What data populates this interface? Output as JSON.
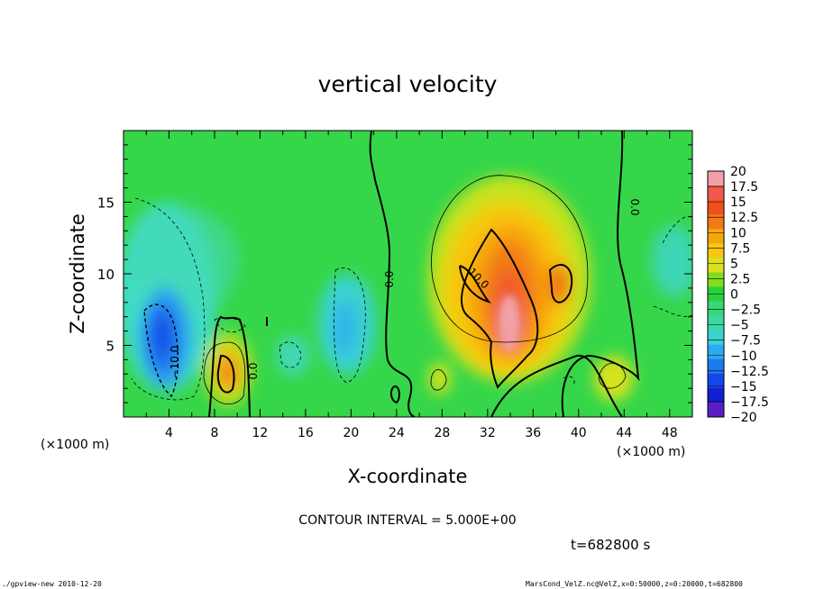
{
  "chart_data": {
    "type": "heatmap",
    "title": "vertical velocity",
    "xlabel": "X-coordinate",
    "ylabel": "Z-coordinate",
    "x_unit_left": "(×1000 m)",
    "x_unit_right": "(×1000 m)",
    "xlim": [
      0,
      50
    ],
    "ylim": [
      0,
      20
    ],
    "x_ticks": [
      "4",
      "8",
      "12",
      "16",
      "20",
      "24",
      "28",
      "32",
      "36",
      "40",
      "44",
      "48"
    ],
    "x_tick_values": [
      4,
      8,
      12,
      16,
      20,
      24,
      28,
      32,
      36,
      40,
      44,
      48
    ],
    "y_ticks": [
      "5",
      "10",
      "15"
    ],
    "y_tick_values": [
      5,
      10,
      15
    ],
    "colorbar_labels": [
      "20",
      "17.5",
      "15",
      "12.5",
      "10",
      "7.5",
      "5",
      "2.5",
      "0",
      "−2.5",
      "−5",
      "−7.5",
      "−10",
      "−12.5",
      "−15",
      "−17.5",
      "−20"
    ],
    "colorbar_colors": [
      "#f2a0a6",
      "#f05a4c",
      "#f0501c",
      "#f27a14",
      "#f7a60f",
      "#f7c80f",
      "#d8e21e",
      "#84dc1e",
      "#28d23c",
      "#36d878",
      "#3ed6a6",
      "#3ad2d2",
      "#2aaaf0",
      "#1e78ee",
      "#1646e6",
      "#141ed2",
      "#5a1ec8"
    ],
    "contour_labels": [
      "0.0",
      "0.0",
      "0.0",
      "10.0",
      "−10.0",
      "0.0"
    ],
    "contour_interval": "CONTOUR INTERVAL = 5.000E+00",
    "time": "t=682800 s",
    "features": [
      {
        "kind": "updraft_max",
        "x": 33.8,
        "z": 6.0,
        "value": 18
      },
      {
        "kind": "updraft",
        "x": 38.7,
        "z": 9.0,
        "value": 11
      },
      {
        "kind": "updraft",
        "x": 9.3,
        "z": 3.0,
        "value": 12
      },
      {
        "kind": "updraft",
        "x": 43.5,
        "z": 2.5,
        "value": 5
      },
      {
        "kind": "downdraft_min",
        "x": 3.8,
        "z": 5.0,
        "value": -13
      },
      {
        "kind": "downdraft",
        "x": 19.8,
        "z": 7.0,
        "value": -7
      },
      {
        "kind": "downdraft",
        "x": 48.0,
        "z": 10.0,
        "value": -5
      }
    ]
  },
  "footer": {
    "left": "./gpview-new  2010-12-20",
    "right": "MarsCond_VelZ.nc@VelZ,x=0:50000,z=0:20000,t=682800"
  }
}
